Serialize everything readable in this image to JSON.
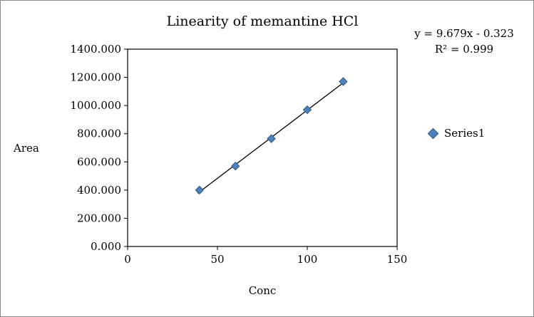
{
  "chart_data": {
    "type": "scatter",
    "title": "Linearity of memantine HCl",
    "xlabel": "Conc",
    "ylabel": "Area",
    "xlim": [
      0,
      150
    ],
    "ylim": [
      0,
      1400
    ],
    "grid": false,
    "x_ticks": [
      {
        "value": 0,
        "label": "0"
      },
      {
        "value": 50,
        "label": "50"
      },
      {
        "value": 100,
        "label": "100"
      },
      {
        "value": 150,
        "label": "150"
      }
    ],
    "y_ticks": [
      {
        "value": 0,
        "label": "0.000"
      },
      {
        "value": 200,
        "label": "200.000"
      },
      {
        "value": 400,
        "label": "400.000"
      },
      {
        "value": 600,
        "label": "600.000"
      },
      {
        "value": 800,
        "label": "800.000"
      },
      {
        "value": 1000,
        "label": "1000.000"
      },
      {
        "value": 1200,
        "label": "1200.000"
      },
      {
        "value": 1400,
        "label": "1400.000"
      }
    ],
    "series": [
      {
        "name": "Series1",
        "x": [
          40,
          60,
          80,
          100,
          120
        ],
        "y": [
          400,
          570,
          765,
          970,
          1170
        ],
        "marker": "diamond",
        "marker_color": "#4F81BD",
        "marker_edge_color": "#2E5A88"
      }
    ],
    "trendline": {
      "equation": "y = 9.679x - 0.323",
      "r_squared_label": "R² = 0.999",
      "slope": 9.679,
      "intercept": -0.323,
      "x_start": 39,
      "x_end": 121,
      "color": "#000000"
    },
    "legend": {
      "position": "right",
      "entries": [
        "Series1"
      ]
    }
  }
}
